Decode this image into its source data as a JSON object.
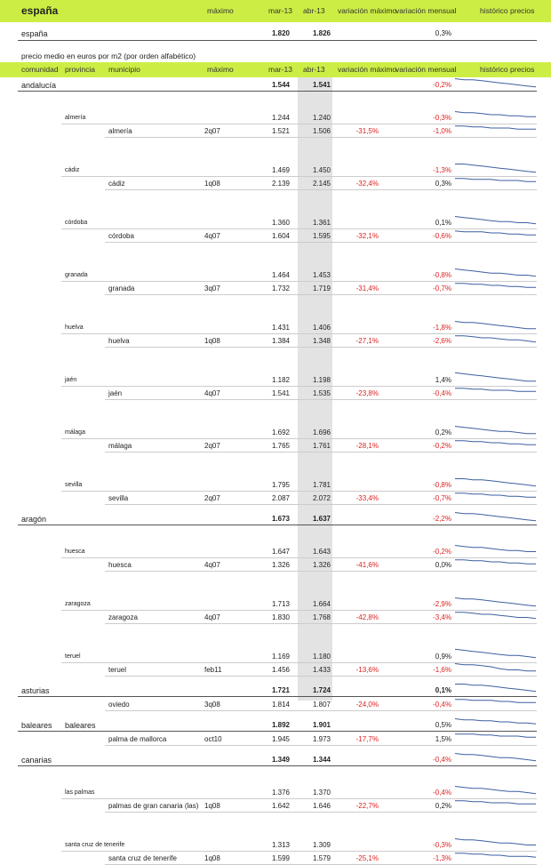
{
  "header_top": {
    "title": "españa",
    "cols": {
      "maximo": "máximo",
      "mar": "mar-13",
      "abr": "abr-13",
      "var_max": "variación máximo",
      "var_mens": "variación mensual",
      "hist": "histórico precios"
    }
  },
  "espana_row": {
    "name": "españa",
    "mar": "1.820",
    "abr": "1.826",
    "var_mens": "0,3%"
  },
  "note": "precio medio en euros por m2 (por orden alfabético)",
  "header_main": {
    "comunidad": "comunidad",
    "provincia": "provincia",
    "municipio": "municipio",
    "maximo": "máximo",
    "mar": "mar-13",
    "abr": "abr-13",
    "var_max": "variación máximo",
    "var_mens": "variación mensual",
    "hist": "histórico precios"
  },
  "rows": [
    {
      "level": "c",
      "name": "andalucía",
      "mar": "1.544",
      "abr": "1.541",
      "vmen": "-0,2%",
      "spark": [
        3,
        4,
        4,
        5,
        6,
        7,
        8,
        9,
        10,
        11
      ]
    },
    {
      "level": "p",
      "name": "almería",
      "mar": "1.244",
      "abr": "1.240",
      "vmen": "-0,3%",
      "spark": [
        3,
        4,
        4,
        5,
        6,
        6,
        7,
        7,
        8,
        8
      ]
    },
    {
      "level": "m",
      "name": "almería",
      "max": "2q07",
      "mar": "1.521",
      "abr": "1.506",
      "vmax": "-31,5%",
      "vmen": "-1,0%",
      "spark": [
        4,
        4,
        5,
        5,
        6,
        6,
        6,
        7,
        7,
        7
      ]
    },
    {
      "level": "p",
      "name": "cádiz",
      "mar": "1.469",
      "abr": "1.450",
      "vmen": "-1,3%",
      "spark": [
        3,
        3,
        4,
        5,
        6,
        7,
        8,
        9,
        10,
        11
      ]
    },
    {
      "level": "m",
      "name": "cádiz",
      "max": "1q08",
      "mar": "2.139",
      "abr": "2.145",
      "vmax": "-32,4%",
      "vmen": "0,3%",
      "spark": [
        4,
        4,
        5,
        5,
        5,
        6,
        6,
        6,
        7,
        7
      ]
    },
    {
      "level": "p",
      "name": "córdoba",
      "mar": "1.360",
      "abr": "1.361",
      "vmen": "0,1%",
      "spark": [
        3,
        4,
        5,
        6,
        7,
        8,
        8,
        9,
        9,
        10
      ]
    },
    {
      "level": "m",
      "name": "córdoba",
      "max": "4q07",
      "mar": "1.604",
      "abr": "1.595",
      "vmax": "-32,1%",
      "vmen": "-0,6%",
      "spark": [
        4,
        5,
        5,
        5,
        6,
        6,
        7,
        7,
        8,
        8
      ]
    },
    {
      "level": "p",
      "name": "granada",
      "mar": "1.464",
      "abr": "1.453",
      "vmen": "-0,8%",
      "spark": [
        3,
        4,
        5,
        6,
        7,
        7,
        8,
        9,
        9,
        10
      ]
    },
    {
      "level": "m",
      "name": "granada",
      "max": "3q07",
      "mar": "1.732",
      "abr": "1.719",
      "vmax": "-31,4%",
      "vmen": "-0,7%",
      "spark": [
        4,
        4,
        5,
        5,
        6,
        6,
        7,
        7,
        8,
        8
      ]
    },
    {
      "level": "p",
      "name": "huelva",
      "mar": "1.431",
      "abr": "1.406",
      "vmen": "-1,8%",
      "spark": [
        3,
        4,
        4,
        5,
        6,
        7,
        8,
        9,
        10,
        10
      ]
    },
    {
      "level": "m",
      "name": "huelva",
      "max": "1q08",
      "mar": "1.384",
      "abr": "1.348",
      "vmax": "-27,1%",
      "vmen": "-2,6%",
      "spark": [
        4,
        4,
        5,
        6,
        6,
        7,
        8,
        8,
        9,
        10
      ]
    },
    {
      "level": "p",
      "name": "jaén",
      "mar": "1.182",
      "abr": "1.198",
      "vmen": "1,4%",
      "spark": [
        2,
        3,
        4,
        5,
        6,
        7,
        8,
        9,
        10,
        10
      ]
    },
    {
      "level": "m",
      "name": "jaén",
      "max": "4q07",
      "mar": "1.541",
      "abr": "1.535",
      "vmax": "-23,8%",
      "vmen": "-0,4%",
      "spark": [
        4,
        4,
        5,
        5,
        6,
        6,
        6,
        7,
        7,
        7
      ]
    },
    {
      "level": "p",
      "name": "málaga",
      "mar": "1.692",
      "abr": "1.696",
      "vmen": "0,2%",
      "spark": [
        3,
        4,
        5,
        6,
        7,
        8,
        8,
        9,
        10,
        10
      ]
    },
    {
      "level": "m",
      "name": "málaga",
      "max": "2q07",
      "mar": "1.765",
      "abr": "1.761",
      "vmax": "-28,1%",
      "vmen": "-0,2%",
      "spark": [
        4,
        4,
        5,
        5,
        6,
        6,
        7,
        7,
        8,
        8
      ]
    },
    {
      "level": "p",
      "name": "sevilla",
      "mar": "1.795",
      "abr": "1.781",
      "vmen": "-0,8%",
      "spark": [
        3,
        3,
        4,
        4,
        5,
        6,
        7,
        8,
        9,
        10
      ]
    },
    {
      "level": "m",
      "name": "sevilla",
      "max": "2q07",
      "mar": "2.087",
      "abr": "2.072",
      "vmax": "-33,4%",
      "vmen": "-0,7%",
      "spark": [
        4,
        4,
        5,
        5,
        6,
        6,
        7,
        7,
        8,
        8
      ]
    },
    {
      "level": "c",
      "name": "aragón",
      "mar": "1.673",
      "abr": "1.637",
      "vmen": "-2,2%",
      "spark": [
        3,
        4,
        4,
        5,
        6,
        7,
        8,
        9,
        10,
        11
      ]
    },
    {
      "level": "p",
      "name": "huesca",
      "mar": "1.647",
      "abr": "1.643",
      "vmen": "-0,2%",
      "spark": [
        3,
        4,
        5,
        5,
        6,
        7,
        8,
        8,
        9,
        9
      ]
    },
    {
      "level": "m",
      "name": "huesca",
      "max": "4q07",
      "mar": "1.326",
      "abr": "1.326",
      "vmax": "-41,6%",
      "vmen": "0,0%",
      "spark": [
        4,
        4,
        5,
        5,
        6,
        6,
        7,
        7,
        8,
        8
      ]
    },
    {
      "level": "p",
      "name": "zaragoza",
      "mar": "1.713",
      "abr": "1.664",
      "vmen": "-2,9%",
      "spark": [
        3,
        4,
        4,
        5,
        6,
        7,
        8,
        9,
        10,
        11
      ]
    },
    {
      "level": "m",
      "name": "zaragoza",
      "max": "4q07",
      "mar": "1.830",
      "abr": "1.768",
      "vmax": "-42,8%",
      "vmen": "-3,4%",
      "spark": [
        4,
        4,
        5,
        6,
        6,
        7,
        8,
        9,
        9,
        10
      ]
    },
    {
      "level": "p",
      "name": "teruel",
      "mar": "1.169",
      "abr": "1.180",
      "vmen": "0,9%",
      "spark": [
        2,
        3,
        4,
        5,
        6,
        7,
        8,
        8,
        9,
        10
      ]
    },
    {
      "level": "m",
      "name": "teruel",
      "max": "feb11",
      "mar": "1.456",
      "abr": "1.433",
      "vmax": "-13,6%",
      "vmen": "-1,6%",
      "spark": [
        3,
        4,
        4,
        5,
        6,
        8,
        9,
        9,
        10,
        10
      ]
    },
    {
      "level": "c",
      "name": "asturias",
      "mar": "1.721",
      "abr": "1.724",
      "vmen": "0,1%",
      "vmen_bold": true,
      "spark": [
        3,
        3,
        4,
        4,
        5,
        6,
        7,
        8,
        9,
        10
      ]
    },
    {
      "level": "m",
      "name": "oviedo",
      "max": "3q08",
      "mar": "1.814",
      "abr": "1.807",
      "vmax": "-24,0%",
      "vmen": "-0,4%",
      "spark": [
        4,
        4,
        5,
        5,
        5,
        6,
        6,
        7,
        7,
        7
      ]
    },
    {
      "level": "cp",
      "name": "baleares",
      "prov": "baleares",
      "mar": "1.892",
      "abr": "1.901",
      "vmen": "0,5%",
      "spark": [
        3,
        4,
        4,
        5,
        5,
        6,
        6,
        7,
        7,
        8
      ]
    },
    {
      "level": "m",
      "name": "palma de mallorca",
      "max": "oct10",
      "mar": "1.945",
      "abr": "1.973",
      "vmax": "-17,7%",
      "vmen": "1,5%",
      "spark": [
        4,
        4,
        4,
        5,
        5,
        6,
        6,
        6,
        7,
        7
      ]
    },
    {
      "level": "c",
      "name": "canarias",
      "mar": "1.349",
      "abr": "1.344",
      "vmen": "-0,4%",
      "spark": [
        3,
        4,
        4,
        5,
        6,
        7,
        7,
        8,
        9,
        10
      ]
    },
    {
      "level": "p",
      "name": "las palmas",
      "mar": "1.376",
      "abr": "1.370",
      "vmen": "-0,4%",
      "spark": [
        3,
        4,
        5,
        5,
        6,
        7,
        8,
        8,
        9,
        10
      ]
    },
    {
      "level": "m",
      "name": "palmas de gran canaria (las)",
      "max": "1q08",
      "mar": "1.642",
      "abr": "1.646",
      "vmax": "-22,7%",
      "vmen": "0,2%",
      "spark": [
        4,
        4,
        5,
        5,
        6,
        6,
        6,
        7,
        7,
        7
      ]
    },
    {
      "level": "p",
      "name": "santa cruz de tenerife",
      "mar": "1.313",
      "abr": "1.309",
      "vmen": "-0,3%",
      "spark": [
        3,
        4,
        4,
        5,
        6,
        7,
        7,
        8,
        9,
        9
      ]
    },
    {
      "level": "m",
      "name": "santa cruz de tenerife",
      "max": "1q08",
      "mar": "1.599",
      "abr": "1.579",
      "vmax": "-25,1%",
      "vmen": "-1,3%",
      "spark": [
        4,
        4,
        5,
        5,
        6,
        6,
        7,
        7,
        7,
        8
      ]
    }
  ]
}
